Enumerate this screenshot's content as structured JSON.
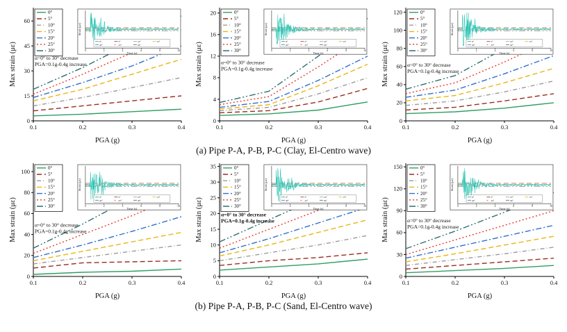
{
  "figure": {
    "caption_a": "(a) Pipe P-A, P-B, P-C (Clay, El-Centro wave)",
    "caption_b": "(b) Pipe P-A, P-B, P-C (Sand, El-Centro wave)"
  },
  "axes": {
    "xlabel": "PGA (g)",
    "ylabel": "Max strain (με)",
    "x_ticks": [
      "0.1",
      "0.2",
      "0.3",
      "0.4"
    ]
  },
  "legend": {
    "labels": [
      "0°",
      "5°",
      "10°",
      "15°",
      "20°",
      "25°",
      "30°"
    ],
    "colors": [
      "#2f9e62",
      "#9a2b1f",
      "#9b9b9b",
      "#e9b511",
      "#2f6fce",
      "#e8392c",
      "#2f6d71"
    ],
    "dashes": [
      "",
      "7 4",
      "6 3 1 3",
      "7 4",
      "8 3 2 3",
      "2 3",
      "9 3 2 3 2 3"
    ]
  },
  "inset": {
    "xlabel": "Time (s)",
    "ylabel": "Strain (με)",
    "x_ticks": [
      0,
      2,
      4,
      6,
      8,
      10
    ],
    "color": "#2bc5b4"
  },
  "chart_data": [
    {
      "id": "clay-pipe-a",
      "type": "line",
      "x": [
        0.1,
        0.2,
        0.3,
        0.4
      ],
      "xlim": [
        0.1,
        0.4
      ],
      "ylim": [
        0,
        68
      ],
      "yticks": [
        0,
        15,
        30,
        45,
        60
      ],
      "ann_y": 0.46,
      "annotation": [
        "α=0° to 30° decrease",
        "PGA=0.1g-0.4g increase"
      ],
      "series": [
        {
          "name": "0°",
          "values": [
            3,
            4,
            5.5,
            7
          ]
        },
        {
          "name": "5°",
          "values": [
            6,
            9,
            12,
            15
          ]
        },
        {
          "name": "10°",
          "values": [
            9,
            14,
            20,
            26
          ]
        },
        {
          "name": "15°",
          "values": [
            12,
            19,
            28,
            37
          ]
        },
        {
          "name": "20°",
          "values": [
            14,
            23,
            33,
            45
          ]
        },
        {
          "name": "25°",
          "values": [
            16,
            28,
            41,
            55
          ]
        },
        {
          "name": "30°",
          "values": [
            19,
            32,
            47,
            63
          ]
        }
      ]
    },
    {
      "id": "clay-pipe-b",
      "type": "line",
      "x": [
        0.1,
        0.2,
        0.3,
        0.4
      ],
      "xlim": [
        0.1,
        0.4
      ],
      "ylim": [
        0,
        21
      ],
      "yticks": [
        0,
        4,
        8,
        12,
        16,
        20
      ],
      "ann_y": 0.5,
      "annotation": [
        "α=0° to 30° decrease",
        "PGA=0.1g-0.4g increase"
      ],
      "series": [
        {
          "name": "0°",
          "values": [
            1,
            1.3,
            2,
            3.5
          ]
        },
        {
          "name": "5°",
          "values": [
            1.5,
            1.9,
            3.5,
            6
          ]
        },
        {
          "name": "10°",
          "values": [
            1.9,
            2.5,
            5,
            8
          ]
        },
        {
          "name": "15°",
          "values": [
            2.2,
            3,
            6.5,
            10.5
          ]
        },
        {
          "name": "20°",
          "values": [
            2.5,
            3.6,
            7.5,
            12
          ]
        },
        {
          "name": "25°",
          "values": [
            3,
            4.5,
            10,
            16
          ]
        },
        {
          "name": "30°",
          "values": [
            3.4,
            5.5,
            12,
            19
          ]
        }
      ]
    },
    {
      "id": "clay-pipe-c",
      "type": "line",
      "x": [
        0.1,
        0.2,
        0.3,
        0.4
      ],
      "xlim": [
        0.1,
        0.4
      ],
      "ylim": [
        0,
        125
      ],
      "yticks": [
        0,
        20,
        40,
        60,
        80,
        100,
        120
      ],
      "ann_y": 0.52,
      "annotation": [
        "α=0° to 30° decrease",
        "PGA=0.1g-0.4g increase"
      ],
      "series": [
        {
          "name": "0°",
          "values": [
            8,
            10,
            14,
            20
          ]
        },
        {
          "name": "5°",
          "values": [
            12,
            15,
            22,
            30
          ]
        },
        {
          "name": "10°",
          "values": [
            17,
            22,
            32,
            44
          ]
        },
        {
          "name": "15°",
          "values": [
            22,
            28,
            42,
            58
          ]
        },
        {
          "name": "20°",
          "values": [
            26,
            34,
            52,
            72
          ]
        },
        {
          "name": "25°",
          "values": [
            30,
            42,
            65,
            90
          ]
        },
        {
          "name": "30°",
          "values": [
            35,
            50,
            80,
            112
          ]
        }
      ]
    },
    {
      "id": "sand-pipe-a",
      "type": "line",
      "x": [
        0.1,
        0.2,
        0.3,
        0.4
      ],
      "xlim": [
        0.1,
        0.4
      ],
      "ylim": [
        0,
        108
      ],
      "yticks": [
        0,
        20,
        40,
        60,
        80,
        100
      ],
      "ann_y": 0.56,
      "annotation": [
        "α=0° to 30° decrease",
        "PGA=0.1g-0.4g increase"
      ],
      "series": [
        {
          "name": "0°",
          "values": [
            2,
            4,
            5,
            7
          ]
        },
        {
          "name": "5°",
          "values": [
            8,
            13,
            14,
            15
          ]
        },
        {
          "name": "10°",
          "values": [
            12,
            18,
            24,
            30
          ]
        },
        {
          "name": "15°",
          "values": [
            15,
            24,
            33,
            42
          ]
        },
        {
          "name": "20°",
          "values": [
            18,
            30,
            43,
            57
          ]
        },
        {
          "name": "25°",
          "values": [
            22,
            40,
            58,
            78
          ]
        },
        {
          "name": "30°",
          "values": [
            27,
            50,
            75,
            103
          ]
        }
      ]
    },
    {
      "id": "sand-pipe-b",
      "type": "line",
      "x": [
        0.1,
        0.2,
        0.3,
        0.4
      ],
      "xlim": [
        0.1,
        0.4
      ],
      "ylim": [
        0,
        36
      ],
      "yticks": [
        0,
        5,
        10,
        15,
        20,
        25,
        30,
        35
      ],
      "ann_y": 0.47,
      "annotation_bold": true,
      "annotation": [
        "α=0° to 30° decrease",
        "PGA=0.1g-0.4g increase"
      ],
      "series": [
        {
          "name": "0°",
          "values": [
            2,
            3,
            4,
            5.5
          ]
        },
        {
          "name": "5°",
          "values": [
            3.5,
            5,
            6,
            7.5
          ]
        },
        {
          "name": "10°",
          "values": [
            5,
            7.5,
            10,
            13
          ]
        },
        {
          "name": "15°",
          "values": [
            6.5,
            10,
            14,
            18
          ]
        },
        {
          "name": "20°",
          "values": [
            7.5,
            12,
            17,
            22
          ]
        },
        {
          "name": "25°",
          "values": [
            9,
            15,
            21,
            27
          ]
        },
        {
          "name": "30°",
          "values": [
            11,
            18,
            25,
            33
          ]
        }
      ]
    },
    {
      "id": "sand-pipe-c",
      "type": "line",
      "x": [
        0.1,
        0.2,
        0.3,
        0.4
      ],
      "xlim": [
        0.1,
        0.4
      ],
      "ylim": [
        0,
        155
      ],
      "yticks": [
        0,
        30,
        60,
        90,
        120,
        150
      ],
      "ann_y": 0.52,
      "annotation": [
        "α=0° to 30° decrease",
        "PGA=0.1g-0.4g increase"
      ],
      "series": [
        {
          "name": "0°",
          "values": [
            5,
            8,
            11,
            15
          ]
        },
        {
          "name": "5°",
          "values": [
            10,
            15,
            20,
            25
          ]
        },
        {
          "name": "10°",
          "values": [
            15,
            23,
            31,
            40
          ]
        },
        {
          "name": "15°",
          "values": [
            20,
            31,
            43,
            55
          ]
        },
        {
          "name": "20°",
          "values": [
            25,
            40,
            55,
            70
          ]
        },
        {
          "name": "25°",
          "values": [
            30,
            50,
            70,
            90
          ]
        },
        {
          "name": "30°",
          "values": [
            38,
            62,
            88,
            115
          ]
        }
      ]
    }
  ]
}
